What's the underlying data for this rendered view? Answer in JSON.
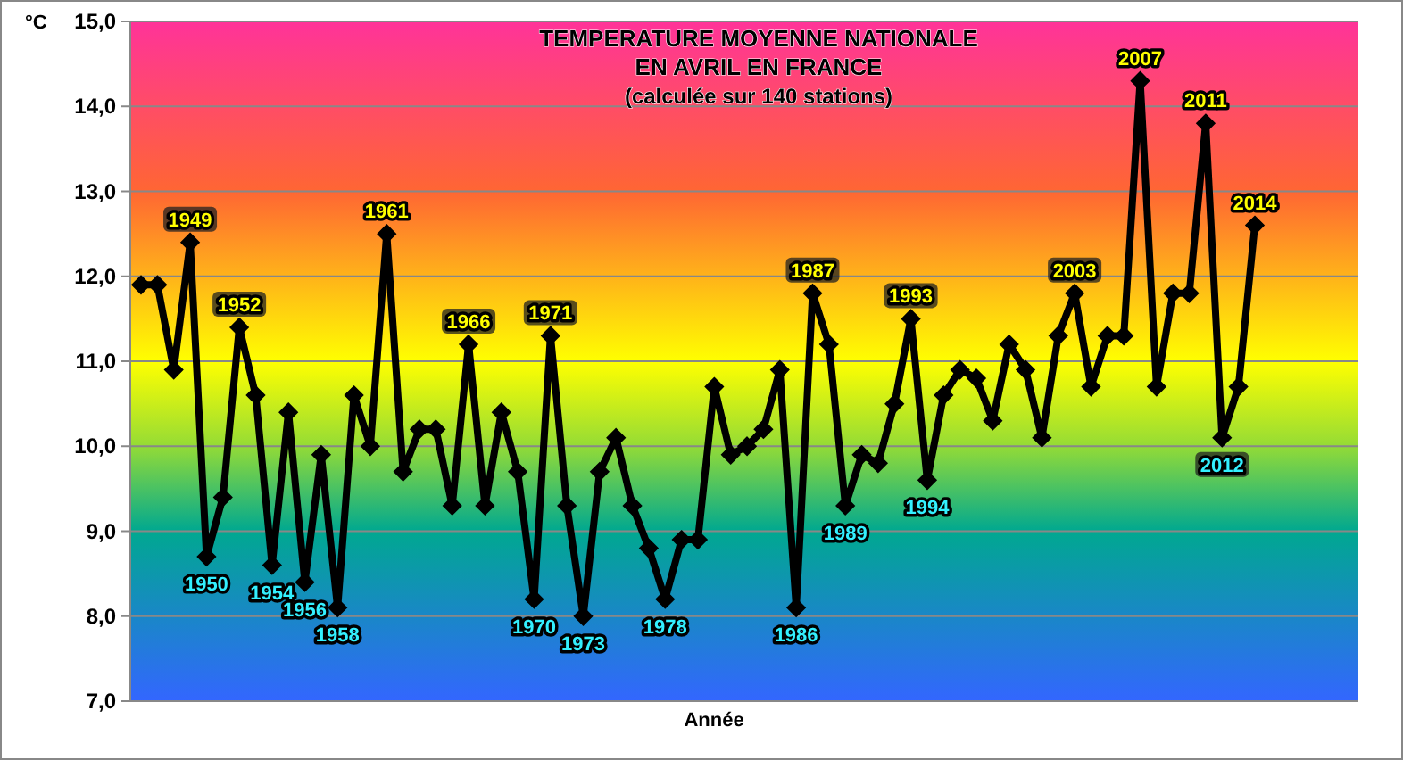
{
  "chart_data": {
    "type": "line",
    "title": "TEMPERATURE MOYENNE NATIONALE\nEN AVRIL EN FRANCE",
    "subtitle": "(calculée sur 140 stations)",
    "xlabel": "Année",
    "ylabel": "°C",
    "categories": [
      null,
      null,
      null,
      null,
      null,
      null,
      null,
      null,
      null,
      null,
      null,
      null,
      null,
      null,
      null,
      null,
      null,
      null,
      null,
      null,
      null,
      null,
      null,
      null,
      null,
      null,
      null,
      null,
      null,
      null,
      null,
      null,
      null,
      null,
      null,
      null,
      null,
      null,
      null,
      null,
      null,
      null,
      null,
      null,
      null,
      null,
      null,
      null,
      null,
      null,
      null,
      null,
      null,
      null,
      null,
      null,
      null,
      null,
      null,
      null,
      null,
      null,
      null,
      null,
      null,
      null,
      null,
      null,
      null
    ],
    "series": [
      {
        "color": "#000000",
        "values": [
          11.9,
          11.9,
          10.9,
          12.4,
          8.7,
          9.4,
          11.4,
          10.6,
          8.6,
          10.4,
          8.4,
          9.9,
          8.1,
          10.6,
          10.0,
          12.5,
          9.7,
          10.2,
          10.2,
          9.3,
          11.2,
          9.3,
          10.4,
          9.7,
          8.2,
          11.3,
          9.3,
          8.0,
          9.7,
          10.1,
          9.3,
          8.8,
          8.2,
          8.9,
          8.9,
          10.7,
          9.9,
          10.0,
          10.2,
          10.9,
          8.1,
          11.8,
          11.2,
          9.3,
          9.9,
          9.8,
          10.5,
          11.5,
          9.6,
          10.6,
          10.9,
          10.8,
          10.3,
          11.2,
          10.9,
          10.1,
          11.3,
          11.8,
          10.7,
          11.3,
          11.3,
          14.3,
          10.7,
          11.8,
          11.8,
          13.8,
          10.1,
          10.7,
          12.6
        ]
      }
    ],
    "annotations": [
      {
        "text": "1949",
        "y": 12.4
      },
      {
        "text": "1950",
        "y": 8.7
      },
      {
        "text": "1952",
        "y": 11.4
      },
      {
        "text": "1954",
        "y": 8.6
      },
      {
        "text": "1956",
        "y": 8.4
      },
      {
        "text": "1958",
        "y": 8.1
      },
      {
        "text": "1961",
        "y": 12.5
      },
      {
        "text": "1966",
        "y": 11.2
      },
      {
        "text": "1970",
        "y": 8.2
      },
      {
        "text": "1971",
        "y": 11.3
      },
      {
        "text": "1973",
        "y": 8.0
      },
      {
        "text": "1978",
        "y": 8.2
      },
      {
        "text": "1986",
        "y": 8.1
      },
      {
        "text": "1987",
        "y": 11.8
      },
      {
        "text": "1989",
        "y": 9.3
      },
      {
        "text": "1993",
        "y": 11.5
      },
      {
        "text": "1994",
        "y": 9.6
      },
      {
        "text": "2003",
        "y": 11.8
      },
      {
        "text": "2007",
        "y": 14.3
      },
      {
        "text": "2011",
        "y": 13.8
      },
      {
        "text": "2012",
        "y": 10.1
      },
      {
        "text": "2014",
        "y": 12.6
      }
    ],
    "tick_labels": "y",
    "ylim": [
      7,
      15
    ],
    "yticks": [
      {
        "value": 7,
        "label": "7,0"
      },
      {
        "value": 8,
        "label": "8,0"
      },
      {
        "value": 9,
        "label": "9,0"
      },
      {
        "value": 10,
        "label": "10,0"
      },
      {
        "value": 11,
        "label": "11,0"
      },
      {
        "value": 12,
        "label": "12,0"
      },
      {
        "value": 13,
        "label": "13,0"
      },
      {
        "value": 14,
        "label": "14,0"
      },
      {
        "value": 15,
        "label": "15,0"
      }
    ],
    "grid": "y",
    "marker": "diamond",
    "line_style": "solid"
  }
}
